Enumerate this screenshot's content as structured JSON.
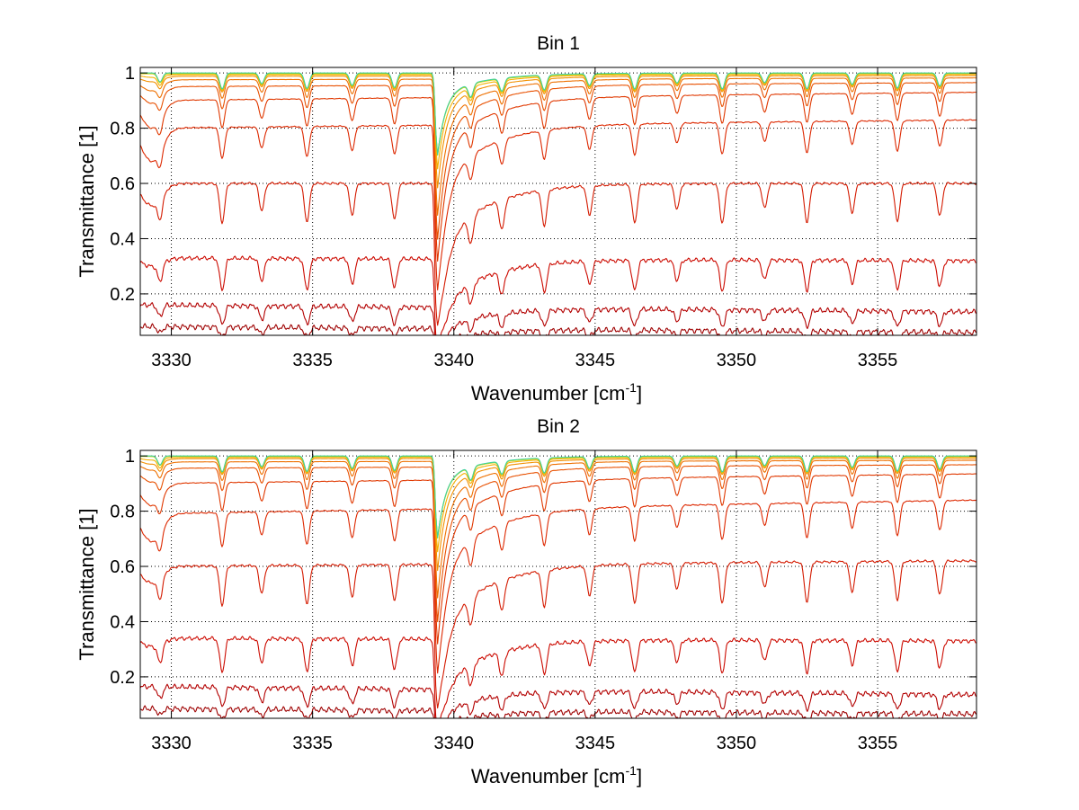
{
  "chart_data": [
    {
      "type": "line",
      "title": "Bin 1",
      "xlabel": "Wavenumber [cm",
      "xlabel_sup": "-1",
      "xlabel_suffix": "]",
      "ylabel": "Transmittance [1]",
      "xlim": [
        3328.9,
        3358.5
      ],
      "ylim": [
        0.05,
        1.02
      ],
      "xticks": [
        3330,
        3335,
        3340,
        3345,
        3350,
        3355
      ],
      "xtick_labels": [
        "3330",
        "3335",
        "3340",
        "3345",
        "3350",
        "3355"
      ],
      "yticks": [
        0.2,
        0.4,
        0.6,
        0.8,
        1
      ],
      "ytick_labels": [
        "0.2",
        "0.4",
        "0.6",
        "0.8",
        "1"
      ],
      "grid": true,
      "series": [
        {
          "color": "#9e0000",
          "baseline": 0.082,
          "end": 0.06,
          "depth": 0.05,
          "feature": 0.15,
          "edge": 0.0
        },
        {
          "color": "#b30000",
          "baseline": 0.16,
          "end": 0.135,
          "depth": 0.08,
          "feature": 0.2,
          "edge": 0.0
        },
        {
          "color": "#cc0a00",
          "baseline": 0.33,
          "end": 0.32,
          "depth": 0.3,
          "feature": 0.22,
          "edge": 0.03
        },
        {
          "color": "#d41a00",
          "baseline": 0.6,
          "end": 0.6,
          "depth": 0.55,
          "feature": 0.45,
          "edge": 0.08
        },
        {
          "color": "#dd2800",
          "baseline": 0.8,
          "end": 0.83,
          "depth": 0.75,
          "feature": 0.62,
          "edge": 0.12
        },
        {
          "color": "#e03800",
          "baseline": 0.9,
          "end": 0.93,
          "depth": 0.8,
          "feature": 0.7,
          "edge": 0.1
        },
        {
          "color": "#e85000",
          "baseline": 0.95,
          "end": 0.965,
          "depth": 0.85,
          "feature": 0.75,
          "edge": 0.06
        },
        {
          "color": "#ee7000",
          "baseline": 0.975,
          "end": 0.982,
          "depth": 0.88,
          "feature": 0.8,
          "edge": 0.04
        },
        {
          "color": "#f29000",
          "baseline": 0.988,
          "end": 0.99,
          "depth": 0.9,
          "feature": 0.85,
          "edge": 0.02
        },
        {
          "color": "#f5b000",
          "baseline": 0.994,
          "end": 0.995,
          "depth": 0.9,
          "feature": 0.88,
          "edge": 0.01
        },
        {
          "color": "#e6cc00",
          "baseline": 0.997,
          "end": 0.998,
          "depth": 0.9,
          "feature": 0.9,
          "edge": 0.0
        },
        {
          "color": "#b8e000",
          "baseline": 0.999,
          "end": 0.999,
          "depth": 0.9,
          "feature": 0.9,
          "edge": 0.0
        },
        {
          "color": "#40d0a0",
          "baseline": 1.0,
          "end": 1.0,
          "depth": 0.9,
          "feature": 0.9,
          "edge": 0.0
        }
      ]
    },
    {
      "type": "line",
      "title": "Bin 2",
      "xlabel": "Wavenumber [cm",
      "xlabel_sup": "-1",
      "xlabel_suffix": "]",
      "ylabel": "Transmittance [1]",
      "xlim": [
        3328.9,
        3358.5
      ],
      "ylim": [
        0.05,
        1.02
      ],
      "xticks": [
        3330,
        3335,
        3340,
        3345,
        3350,
        3355
      ],
      "xtick_labels": [
        "3330",
        "3335",
        "3340",
        "3345",
        "3350",
        "3355"
      ],
      "yticks": [
        0.2,
        0.4,
        0.6,
        0.8,
        1
      ],
      "ytick_labels": [
        "0.2",
        "0.4",
        "0.6",
        "0.8",
        "1"
      ],
      "grid": true,
      "series": [
        {
          "color": "#9e0000",
          "baseline": 0.085,
          "end": 0.065,
          "depth": 0.05,
          "feature": 0.15,
          "edge": 0.0
        },
        {
          "color": "#b30000",
          "baseline": 0.165,
          "end": 0.135,
          "depth": 0.08,
          "feature": 0.2,
          "edge": 0.0
        },
        {
          "color": "#cc0a00",
          "baseline": 0.34,
          "end": 0.33,
          "depth": 0.28,
          "feature": 0.24,
          "edge": 0.03
        },
        {
          "color": "#d41a00",
          "baseline": 0.6,
          "end": 0.62,
          "depth": 0.55,
          "feature": 0.45,
          "edge": 0.06
        },
        {
          "color": "#dd2800",
          "baseline": 0.79,
          "end": 0.84,
          "depth": 0.72,
          "feature": 0.62,
          "edge": 0.1
        },
        {
          "color": "#e03800",
          "baseline": 0.9,
          "end": 0.935,
          "depth": 0.8,
          "feature": 0.7,
          "edge": 0.08
        },
        {
          "color": "#e85000",
          "baseline": 0.955,
          "end": 0.968,
          "depth": 0.85,
          "feature": 0.75,
          "edge": 0.05
        },
        {
          "color": "#ee7000",
          "baseline": 0.978,
          "end": 0.984,
          "depth": 0.88,
          "feature": 0.8,
          "edge": 0.03
        },
        {
          "color": "#f29000",
          "baseline": 0.99,
          "end": 0.991,
          "depth": 0.9,
          "feature": 0.85,
          "edge": 0.02
        },
        {
          "color": "#f5b000",
          "baseline": 0.995,
          "end": 0.996,
          "depth": 0.9,
          "feature": 0.88,
          "edge": 0.01
        },
        {
          "color": "#e6cc00",
          "baseline": 0.998,
          "end": 0.998,
          "depth": 0.9,
          "feature": 0.9,
          "edge": 0.0
        },
        {
          "color": "#b8e000",
          "baseline": 0.999,
          "end": 0.999,
          "depth": 0.9,
          "feature": 0.9,
          "edge": 0.0
        },
        {
          "color": "#40d0a0",
          "baseline": 1.0,
          "end": 1.0,
          "depth": 0.9,
          "feature": 0.9,
          "edge": 0.0
        }
      ]
    }
  ],
  "absorption_lines": [
    3329.6,
    3331.8,
    3333.2,
    3334.8,
    3336.4,
    3337.9,
    3340.6,
    3341.7,
    3343.2,
    3344.8,
    3346.4,
    3347.9,
    3349.5,
    3351.0,
    3352.5,
    3354.1,
    3355.7,
    3357.2
  ],
  "strong_feature": 3339.4
}
